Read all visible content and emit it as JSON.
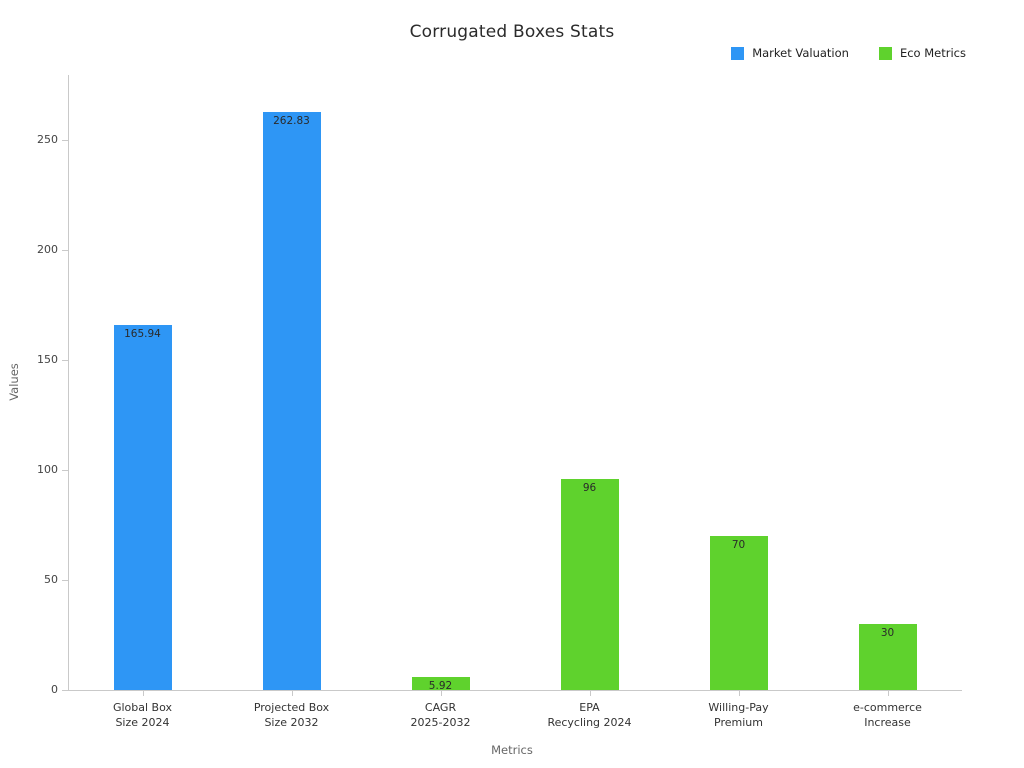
{
  "title": "Corrugated Boxes Stats",
  "chart_data": {
    "type": "bar",
    "title": "Corrugated Boxes Stats",
    "xlabel": "Metrics",
    "ylabel": "Values",
    "ylim": [
      0,
      270
    ],
    "yticks": [
      0,
      50,
      100,
      150,
      200,
      250
    ],
    "grid": false,
    "legend_position": "top-right",
    "categories": [
      "Global Box\nSize 2024",
      "Projected Box\nSize 2032",
      "CAGR\n2025-2032",
      "EPA\nRecycling 2024",
      "Willing-Pay\nPremium",
      "e-commerce\nIncrease"
    ],
    "series": [
      {
        "name": "Market Valuation",
        "color": "#2E96F5",
        "values": [
          165.94,
          262.83,
          null,
          null,
          null,
          null
        ]
      },
      {
        "name": "Eco Metrics",
        "color": "#5FD22D",
        "values": [
          null,
          null,
          5.92,
          96,
          70,
          30
        ]
      }
    ],
    "bar_labels": [
      "165.94",
      "262.83",
      "5.92",
      "96",
      "70",
      "30"
    ]
  }
}
